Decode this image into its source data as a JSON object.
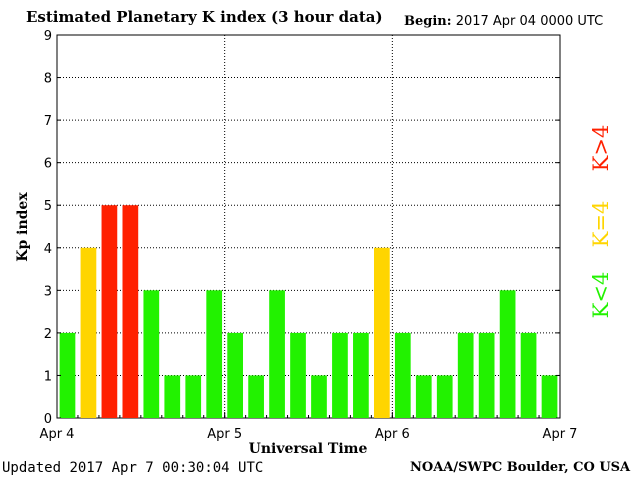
{
  "header": {
    "title": "Estimated Planetary K index (3 hour data)",
    "begin_label": "Begin:",
    "begin_value": "2017 Apr 04 0000 UTC"
  },
  "footer": {
    "updated_label": "Updated",
    "updated_value": "2017 Apr  7 00:30:04 UTC",
    "credit": "NOAA/SWPC Boulder, CO USA"
  },
  "colors": {
    "low": "#22f200",
    "equal": "#ffd500",
    "high": "#ff2000"
  },
  "legend": [
    {
      "label": "K<4",
      "color": "#22f200"
    },
    {
      "label": "K=4",
      "color": "#ffd500"
    },
    {
      "label": "K>4",
      "color": "#ff2000"
    }
  ],
  "chart_data": {
    "type": "bar",
    "title": "Estimated Planetary K index (3 hour data)",
    "xlabel": "Universal Time",
    "ylabel": "Kp index",
    "ylim": [
      0,
      9
    ],
    "yticks": [
      "0",
      "1",
      "2",
      "3",
      "4",
      "5",
      "6",
      "7",
      "8",
      "9"
    ],
    "xticks": [
      "Apr 4",
      "Apr 5",
      "Apr 6",
      "Apr 7"
    ],
    "grid": true,
    "values": [
      2,
      4,
      5,
      5,
      3,
      1,
      1,
      3,
      2,
      1,
      3,
      2,
      1,
      2,
      2,
      4,
      2,
      1,
      1,
      2,
      2,
      3,
      2,
      1
    ]
  }
}
